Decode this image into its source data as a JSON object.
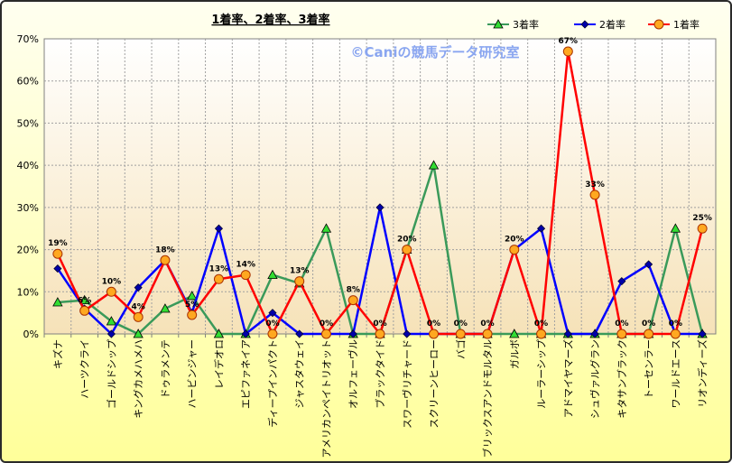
{
  "chart_data": {
    "type": "line",
    "title": "1着率、2着率、3着率",
    "watermark": "©Caniの競馬データ研究室",
    "ylim": [
      0,
      70
    ],
    "yticks": [
      "0%",
      "10%",
      "20%",
      "30%",
      "40%",
      "50%",
      "60%",
      "70%"
    ],
    "grid": true,
    "legend_position": "top-right",
    "categories": [
      "キズナ",
      "ハーツクライ",
      "ゴールドシップ",
      "キングカメハメハ",
      "ドゥラメンテ",
      "ハービンジャー",
      "レイデオロ",
      "エピファネイア",
      "ディープインパクト",
      "ジャスタウェイ",
      "アメリカンペイトリオット",
      "オルフェーヴル",
      "ブラックタイド",
      "スワーヴリチャード",
      "スクリーンヒーロー",
      "バゴ",
      "ブリックスアンドモルタル",
      "ガルボ",
      "ルーラーシップ",
      "アドマイヤマーズ",
      "シュヴァルグラン",
      "キタサンブラック",
      "トーセンラー",
      "ワールドエース",
      "リオンディーズ"
    ],
    "series": [
      {
        "name": "3着率",
        "color": "#3a9a5a",
        "marker": "triangle",
        "values": [
          7.5,
          8,
          3,
          0,
          6,
          9,
          0,
          0,
          14,
          12,
          25,
          0,
          0,
          20,
          40,
          0,
          0,
          0,
          0,
          0,
          0,
          0,
          0,
          25,
          0
        ]
      },
      {
        "name": "2着率",
        "color": "#0000ff",
        "marker": "diamond",
        "values": [
          15.5,
          6,
          0,
          11,
          17.5,
          5,
          25,
          0,
          5,
          0,
          0,
          0,
          30,
          0,
          0,
          0,
          0,
          20,
          25,
          0,
          0,
          12.5,
          16.5,
          0,
          0
        ]
      },
      {
        "name": "1着率",
        "color": "#ff0000",
        "marker": "circle",
        "values": [
          19,
          5.5,
          10,
          4,
          17.5,
          4.5,
          13,
          14,
          0,
          12.5,
          0,
          8,
          0,
          20,
          0,
          0,
          0,
          20,
          0,
          67,
          33,
          0,
          0,
          0,
          25
        ]
      }
    ],
    "data_labels": [
      {
        "series": "1着率",
        "index": 0,
        "text": "19%"
      },
      {
        "series": "1着率",
        "index": 1,
        "text": "6%"
      },
      {
        "series": "1着率",
        "index": 2,
        "text": "10%"
      },
      {
        "series": "1着率",
        "index": 3,
        "text": "4%"
      },
      {
        "series": "1着率",
        "index": 4,
        "text": "18%"
      },
      {
        "series": "1着率",
        "index": 5,
        "text": "5%"
      },
      {
        "series": "1着率",
        "index": 6,
        "text": "13%"
      },
      {
        "series": "1着率",
        "index": 7,
        "text": "14%"
      },
      {
        "series": "1着率",
        "index": 8,
        "text": "0%"
      },
      {
        "series": "1着率",
        "index": 9,
        "text": "13%"
      },
      {
        "series": "1着率",
        "index": 10,
        "text": "0%"
      },
      {
        "series": "1着率",
        "index": 11,
        "text": "8%"
      },
      {
        "series": "1着率",
        "index": 12,
        "text": "0%"
      },
      {
        "series": "1着率",
        "index": 13,
        "text": "20%"
      },
      {
        "series": "1着率",
        "index": 14,
        "text": "0%"
      },
      {
        "series": "1着率",
        "index": 15,
        "text": "0%"
      },
      {
        "series": "1着率",
        "index": 16,
        "text": "0%"
      },
      {
        "series": "1着率",
        "index": 17,
        "text": "20%"
      },
      {
        "series": "1着率",
        "index": 18,
        "text": "0%"
      },
      {
        "series": "1着率",
        "index": 19,
        "text": "67%"
      },
      {
        "series": "1着率",
        "index": 20,
        "text": "33%"
      },
      {
        "series": "1着率",
        "index": 21,
        "text": "0%"
      },
      {
        "series": "1着率",
        "index": 22,
        "text": "0%"
      },
      {
        "series": "1着率",
        "index": 23,
        "text": "0%"
      },
      {
        "series": "1着率",
        "index": 24,
        "text": "25%"
      }
    ]
  }
}
